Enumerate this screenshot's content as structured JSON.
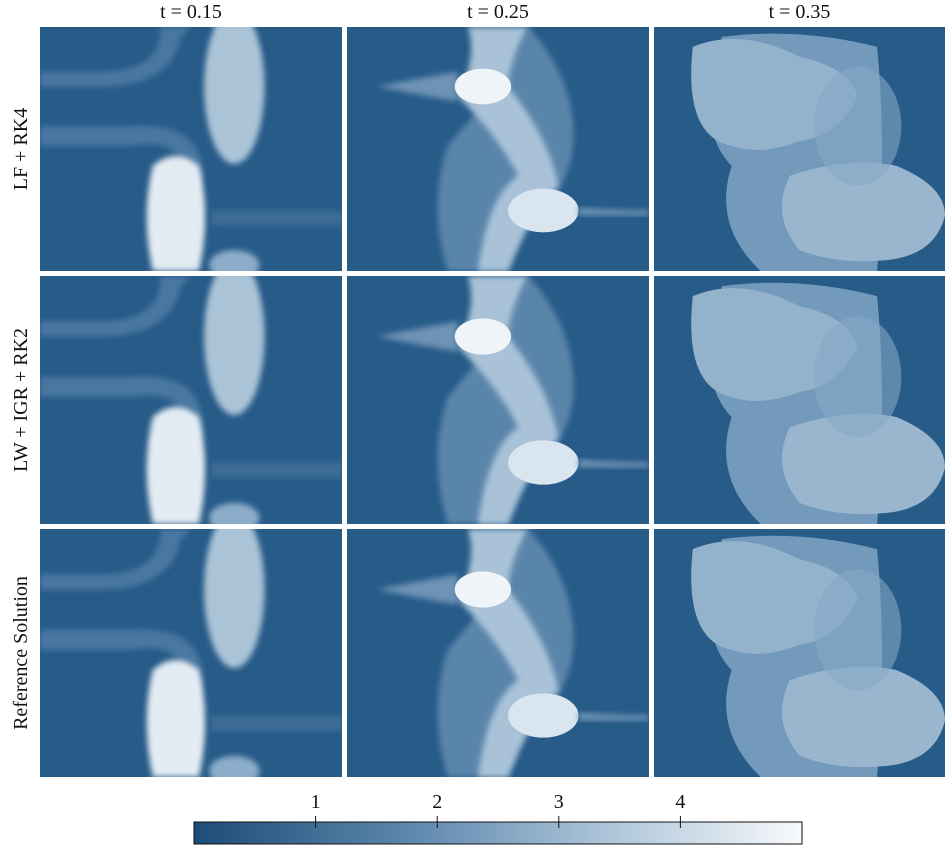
{
  "columns": [
    "t  =  0.15",
    "t  =  0.25",
    "t  =  0.35"
  ],
  "rows": [
    "LF  +  RK4",
    "LW  +  IGR  +  RK2",
    "Reference Solution"
  ],
  "colorbar": {
    "lim": [
      0,
      5
    ],
    "ticks": [
      1,
      2,
      3,
      4
    ]
  }
}
